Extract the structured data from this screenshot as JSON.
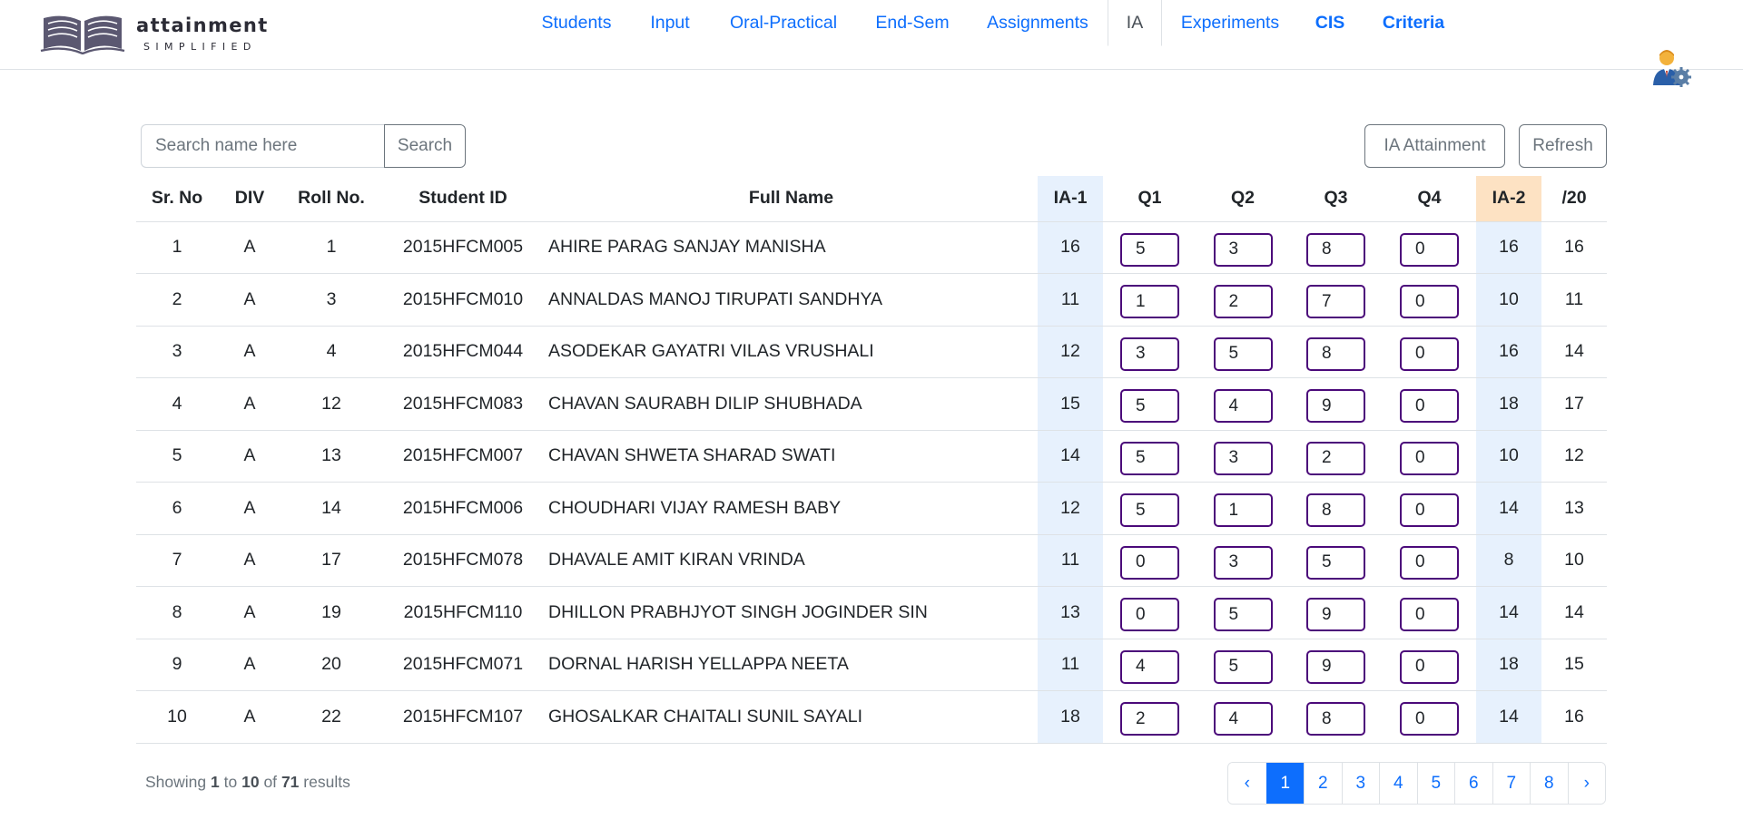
{
  "brand": {
    "name": "attainment",
    "tagline": "SIMPLIFIED"
  },
  "nav": {
    "items": [
      {
        "label": "Students",
        "active": false,
        "bold": false
      },
      {
        "label": "Input",
        "active": false,
        "bold": false
      },
      {
        "label": "Oral-Practical",
        "active": false,
        "bold": false
      },
      {
        "label": "End-Sem",
        "active": false,
        "bold": false
      },
      {
        "label": "Assignments",
        "active": false,
        "bold": false
      },
      {
        "label": "IA",
        "active": true,
        "bold": false
      },
      {
        "label": "Experiments",
        "active": false,
        "bold": false
      },
      {
        "label": "CIS",
        "active": false,
        "bold": true
      },
      {
        "label": "Criteria",
        "active": false,
        "bold": true
      }
    ]
  },
  "toolbar": {
    "search_placeholder": "Search name here",
    "search_label": "Search",
    "ia_attainment_label": "IA Attainment",
    "refresh_label": "Refresh"
  },
  "table": {
    "headers": [
      "Sr. No",
      "DIV",
      "Roll No.",
      "Student ID",
      "Full Name",
      "IA-1",
      "Q1",
      "Q2",
      "Q3",
      "Q4",
      "IA-2",
      "/20"
    ],
    "rows": [
      {
        "sr": "1",
        "div": "A",
        "roll": "1",
        "id": "2015HFCM005",
        "name": "AHIRE PARAG SANJAY MANISHA",
        "ia1": "16",
        "q1": "5",
        "q2": "3",
        "q3": "8",
        "q4": "0",
        "ia2": "16",
        "total": "16"
      },
      {
        "sr": "2",
        "div": "A",
        "roll": "3",
        "id": "2015HFCM010",
        "name": "ANNALDAS MANOJ TIRUPATI SANDHYA",
        "ia1": "11",
        "q1": "1",
        "q2": "2",
        "q3": "7",
        "q4": "0",
        "ia2": "10",
        "total": "11"
      },
      {
        "sr": "3",
        "div": "A",
        "roll": "4",
        "id": "2015HFCM044",
        "name": "ASODEKAR GAYATRI VILAS VRUSHALI",
        "ia1": "12",
        "q1": "3",
        "q2": "5",
        "q3": "8",
        "q4": "0",
        "ia2": "16",
        "total": "14"
      },
      {
        "sr": "4",
        "div": "A",
        "roll": "12",
        "id": "2015HFCM083",
        "name": "CHAVAN SAURABH DILIP SHUBHADA",
        "ia1": "15",
        "q1": "5",
        "q2": "4",
        "q3": "9",
        "q4": "0",
        "ia2": "18",
        "total": "17"
      },
      {
        "sr": "5",
        "div": "A",
        "roll": "13",
        "id": "2015HFCM007",
        "name": "CHAVAN SHWETA SHARAD SWATI",
        "ia1": "14",
        "q1": "5",
        "q2": "3",
        "q3": "2",
        "q4": "0",
        "ia2": "10",
        "total": "12"
      },
      {
        "sr": "6",
        "div": "A",
        "roll": "14",
        "id": "2015HFCM006",
        "name": "CHOUDHARI VIJAY RAMESH BABY",
        "ia1": "12",
        "q1": "5",
        "q2": "1",
        "q3": "8",
        "q4": "0",
        "ia2": "14",
        "total": "13"
      },
      {
        "sr": "7",
        "div": "A",
        "roll": "17",
        "id": "2015HFCM078",
        "name": "DHAVALE AMIT KIRAN VRINDA",
        "ia1": "11",
        "q1": "0",
        "q2": "3",
        "q3": "5",
        "q4": "0",
        "ia2": "8",
        "total": "10"
      },
      {
        "sr": "8",
        "div": "A",
        "roll": "19",
        "id": "2015HFCM110",
        "name": "DHILLON PRABHJYOT SINGH JOGINDER SIN",
        "ia1": "13",
        "q1": "0",
        "q2": "5",
        "q3": "9",
        "q4": "0",
        "ia2": "14",
        "total": "14"
      },
      {
        "sr": "9",
        "div": "A",
        "roll": "20",
        "id": "2015HFCM071",
        "name": "DORNAL HARISH YELLAPPA NEETA",
        "ia1": "11",
        "q1": "4",
        "q2": "5",
        "q3": "9",
        "q4": "0",
        "ia2": "18",
        "total": "15"
      },
      {
        "sr": "10",
        "div": "A",
        "roll": "22",
        "id": "2015HFCM107",
        "name": "GHOSALKAR CHAITALI SUNIL SAYALI",
        "ia1": "18",
        "q1": "2",
        "q2": "4",
        "q3": "8",
        "q4": "0",
        "ia2": "14",
        "total": "16"
      }
    ]
  },
  "footer": {
    "showing_prefix": "Showing",
    "from": "1",
    "to_word": "to",
    "to": "10",
    "of_word": "of",
    "total": "71",
    "results_word": "results"
  },
  "pagination": {
    "prev": "‹",
    "next": "›",
    "pages": [
      "1",
      "2",
      "3",
      "4",
      "5",
      "6",
      "7",
      "8"
    ],
    "current": "1"
  },
  "colors": {
    "link": "#0d6efd",
    "ia_highlight": "#e7f1fd",
    "ia2_header": "#fde2c3",
    "input_border": "#4b0a7a",
    "logo": "#5b5871"
  }
}
